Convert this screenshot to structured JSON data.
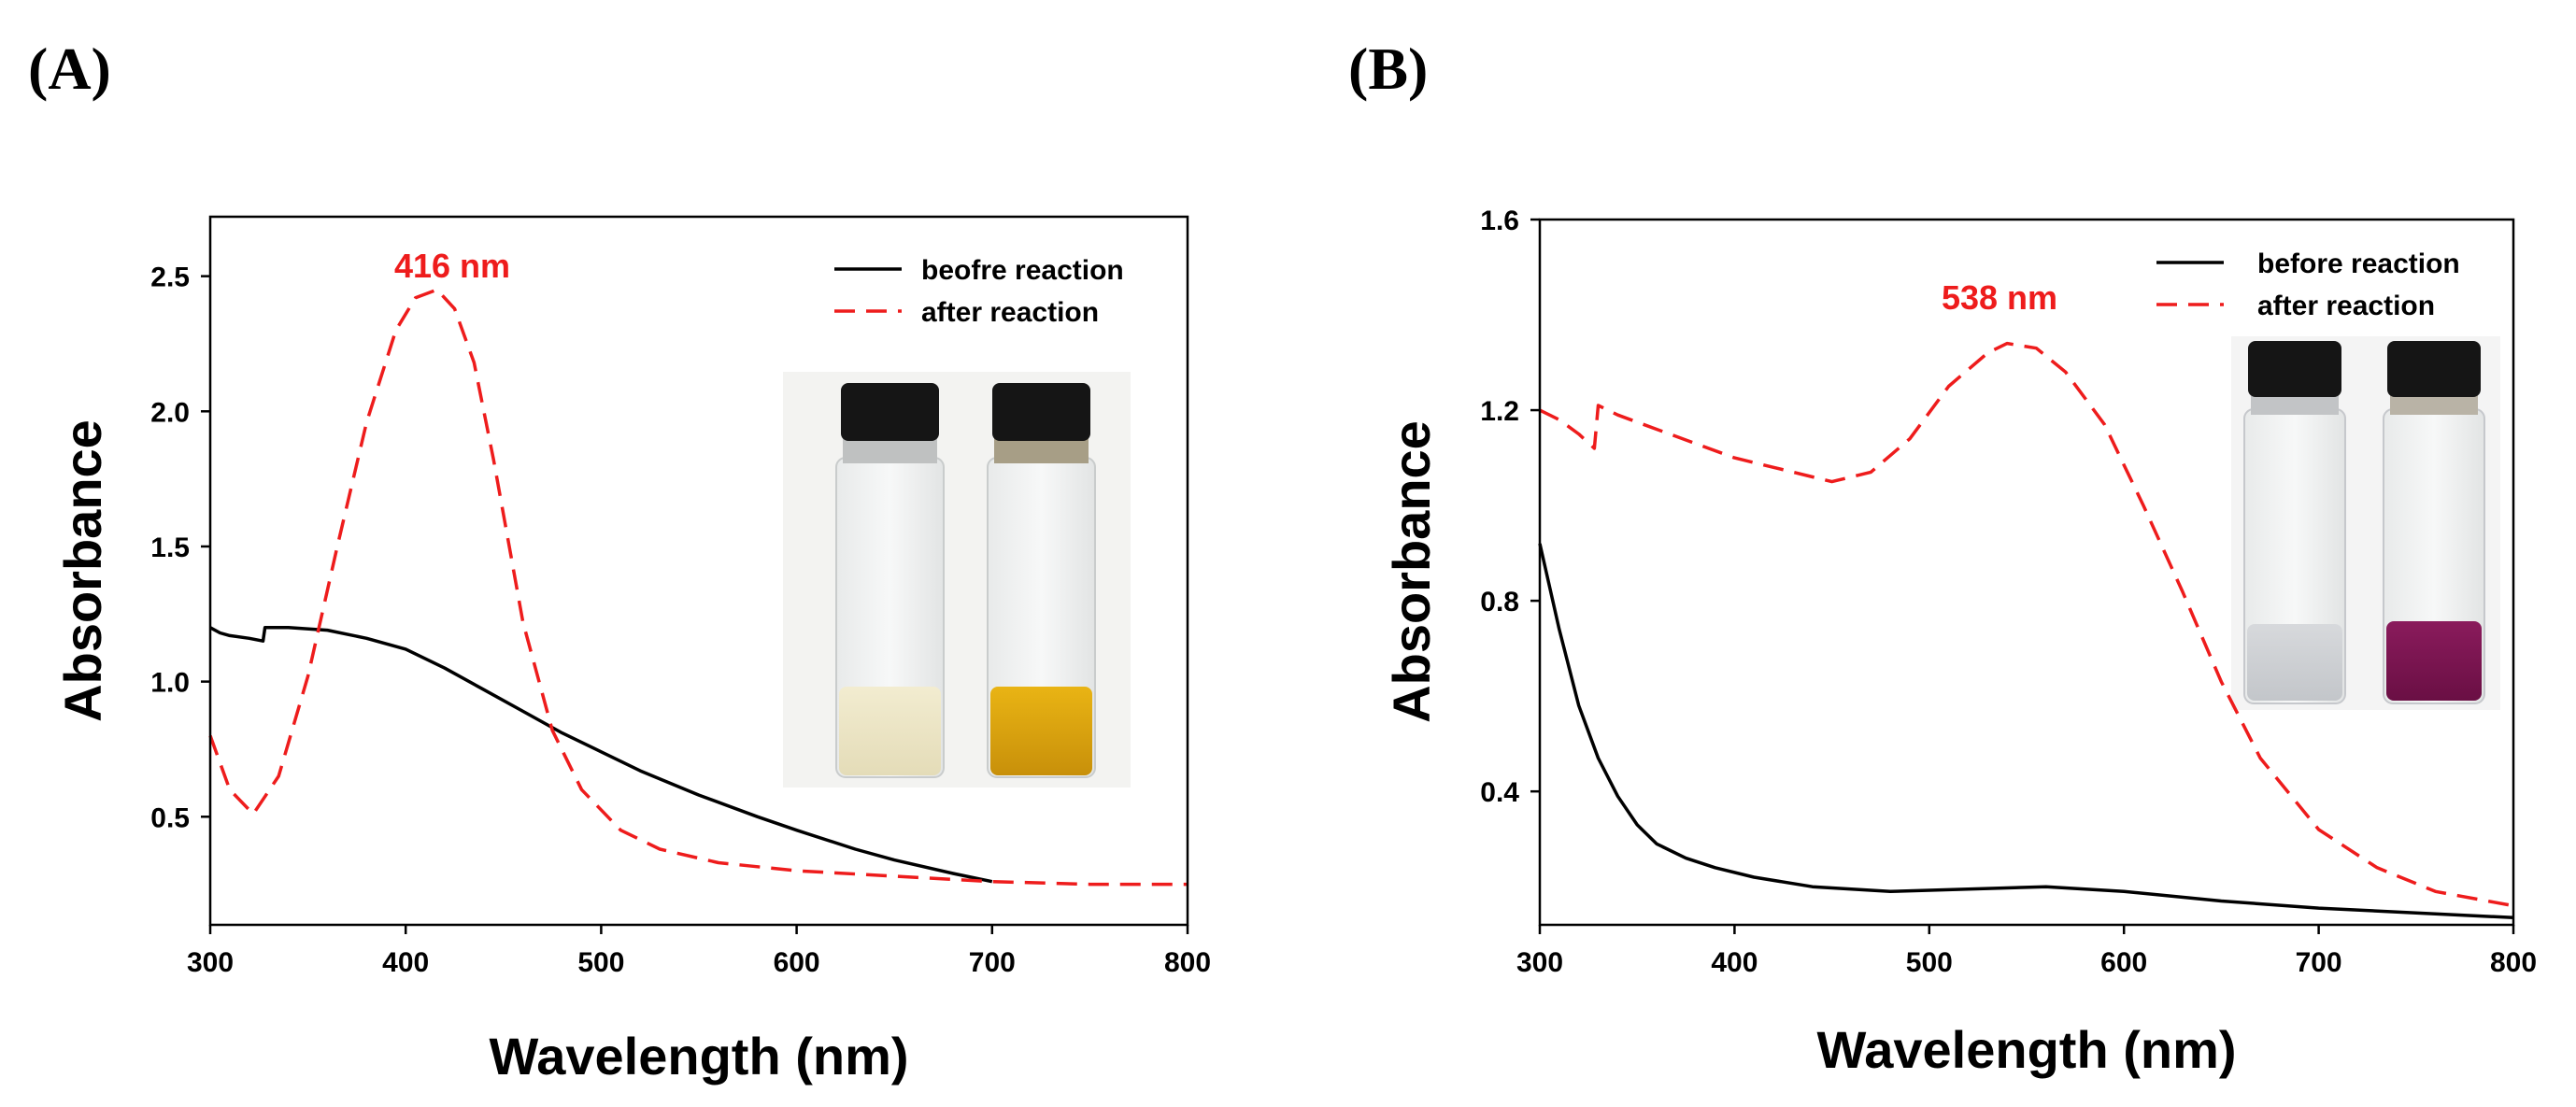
{
  "colors": {
    "before": "#000000",
    "after": "#ee1c1c",
    "axis": "#000000"
  },
  "chart_data": [
    {
      "type": "line",
      "panel_label": "(A)",
      "xlabel": "Wavelength (nm)",
      "ylabel": "Absorbance",
      "xlim": [
        300,
        800
      ],
      "ylim": [
        0.1,
        2.72
      ],
      "xticks": [
        300,
        400,
        500,
        600,
        700,
        800
      ],
      "yticks": [
        0.5,
        1.0,
        1.5,
        2.0,
        2.5
      ],
      "ytick_labels": [
        "0.5",
        "1.0",
        "1.5",
        "2.0",
        "2.5"
      ],
      "annotation": {
        "text": "416 nm",
        "x": 416,
        "y": 2.56
      },
      "legend": {
        "placement": "top-right",
        "entries": [
          "beofre reaction",
          "after reaction"
        ]
      },
      "inset": {
        "description": "photo of two vials",
        "placement": "right"
      },
      "series": [
        {
          "name": "beofre reaction",
          "style": "solid",
          "x": [
            300,
            305,
            310,
            320,
            327,
            328,
            340,
            360,
            380,
            400,
            420,
            440,
            460,
            480,
            500,
            520,
            550,
            580,
            600,
            630,
            650,
            680,
            700
          ],
          "y": [
            1.2,
            1.18,
            1.17,
            1.16,
            1.15,
            1.2,
            1.2,
            1.19,
            1.16,
            1.12,
            1.05,
            0.97,
            0.89,
            0.81,
            0.74,
            0.67,
            0.58,
            0.5,
            0.45,
            0.38,
            0.34,
            0.29,
            0.26
          ]
        },
        {
          "name": "after reaction",
          "style": "dashed",
          "x": [
            300,
            310,
            322,
            335,
            350,
            365,
            380,
            395,
            405,
            416,
            425,
            435,
            445,
            460,
            475,
            490,
            510,
            530,
            560,
            600,
            650,
            700,
            750,
            800
          ],
          "y": [
            0.8,
            0.6,
            0.51,
            0.65,
            1.02,
            1.5,
            1.96,
            2.3,
            2.42,
            2.45,
            2.38,
            2.18,
            1.82,
            1.22,
            0.82,
            0.6,
            0.45,
            0.38,
            0.33,
            0.3,
            0.28,
            0.26,
            0.25,
            0.25
          ]
        }
      ]
    },
    {
      "type": "line",
      "panel_label": "(B)",
      "xlabel": "Wavelength (nm)",
      "ylabel": "Absorbance",
      "xlim": [
        300,
        800
      ],
      "ylim": [
        0.12,
        1.6
      ],
      "xticks": [
        300,
        400,
        500,
        600,
        700,
        800
      ],
      "yticks": [
        0.4,
        0.8,
        1.2,
        1.6
      ],
      "ytick_labels": [
        "0.4",
        "0.8",
        "1.2",
        "1.6"
      ],
      "annotation": {
        "text": "538 nm",
        "x": 538,
        "y": 1.43
      },
      "legend": {
        "placement": "top-right",
        "entries": [
          "before reaction",
          "after reaction"
        ]
      },
      "inset": {
        "description": "photo of two vials",
        "placement": "right"
      },
      "series": [
        {
          "name": "before reaction",
          "style": "solid",
          "x": [
            300,
            310,
            320,
            330,
            340,
            350,
            360,
            375,
            390,
            410,
            440,
            480,
            520,
            560,
            600,
            650,
            700,
            750,
            800
          ],
          "y": [
            0.92,
            0.74,
            0.58,
            0.47,
            0.39,
            0.33,
            0.29,
            0.26,
            0.24,
            0.22,
            0.2,
            0.19,
            0.195,
            0.2,
            0.19,
            0.17,
            0.155,
            0.145,
            0.135
          ]
        },
        {
          "name": "after reaction",
          "style": "dashed",
          "x": [
            300,
            305,
            310,
            320,
            328,
            330,
            340,
            360,
            380,
            400,
            420,
            440,
            450,
            470,
            490,
            510,
            530,
            540,
            555,
            570,
            590,
            610,
            630,
            650,
            670,
            700,
            730,
            760,
            800
          ],
          "y": [
            1.2,
            1.19,
            1.18,
            1.15,
            1.12,
            1.21,
            1.19,
            1.16,
            1.13,
            1.1,
            1.08,
            1.06,
            1.05,
            1.07,
            1.14,
            1.25,
            1.32,
            1.34,
            1.33,
            1.28,
            1.17,
            1.0,
            0.82,
            0.63,
            0.47,
            0.32,
            0.24,
            0.19,
            0.16
          ]
        }
      ]
    }
  ]
}
